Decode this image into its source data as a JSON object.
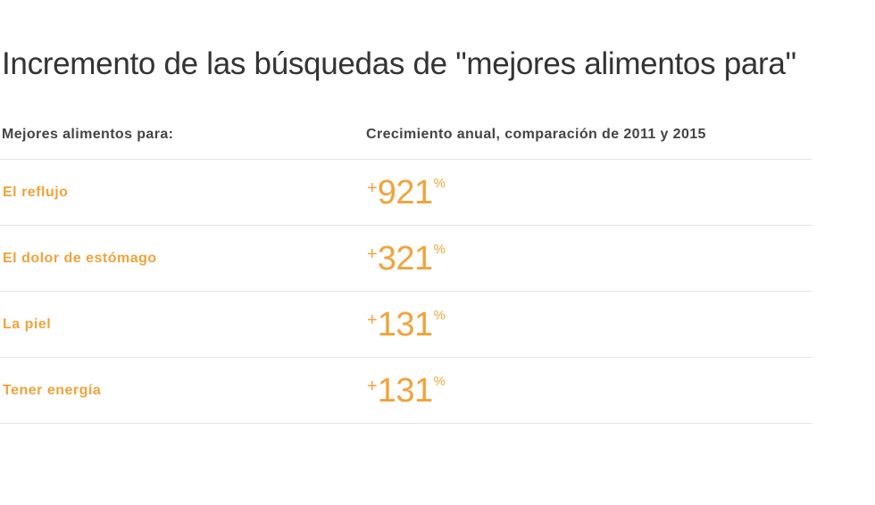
{
  "title": "Incremento de las búsquedas de \"mejores alimentos para\"",
  "colors": {
    "accent": "#f1a33b",
    "text": "#333333",
    "divider": "#e3e3e3"
  },
  "chart_data": {
    "type": "table",
    "title": "Incremento de las búsquedas de \"mejores alimentos para\"",
    "columns": [
      "Mejores alimentos para:",
      "Crecimiento anual, comparación de 2011 y 2015"
    ],
    "rows": [
      {
        "label": "El reflujo",
        "sign": "+",
        "value": "921",
        "unit": "%"
      },
      {
        "label": "El dolor de estómago",
        "sign": "+",
        "value": "321",
        "unit": "%"
      },
      {
        "label": "La piel",
        "sign": "+",
        "value": "131",
        "unit": "%"
      },
      {
        "label": "Tener energía",
        "sign": "+",
        "value": "131",
        "unit": "%"
      }
    ]
  }
}
